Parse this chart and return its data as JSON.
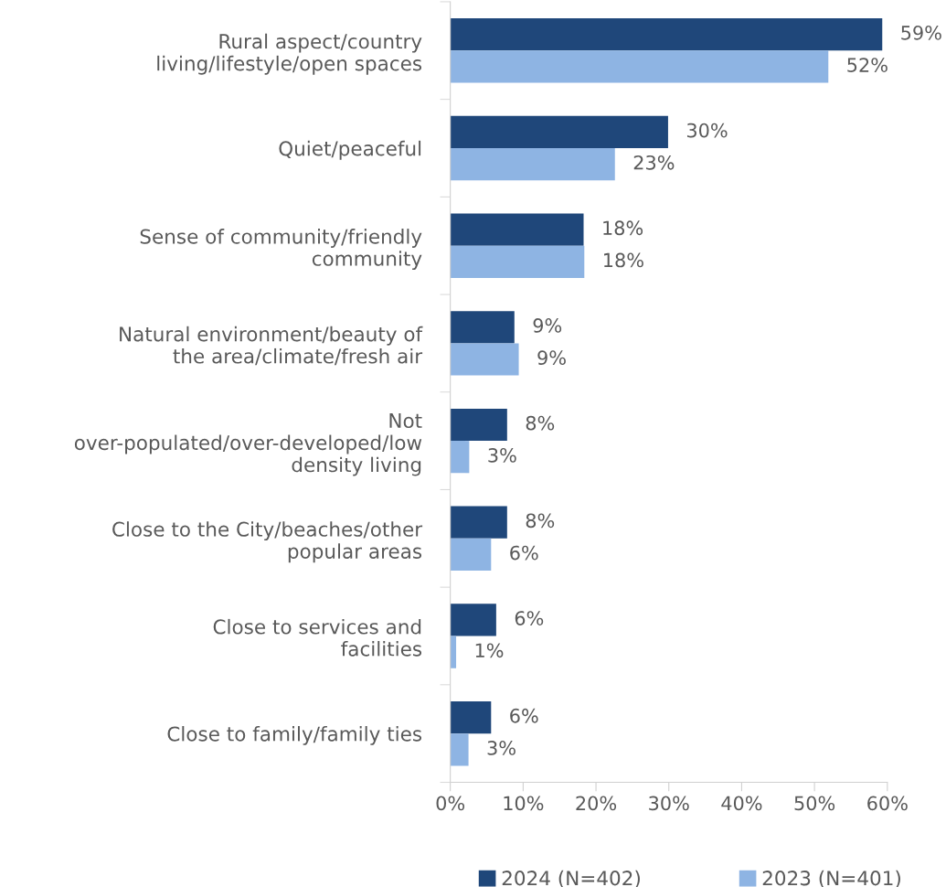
{
  "chart_data": {
    "type": "bar",
    "orientation": "horizontal",
    "categories": [
      "Rural aspect/country living/lifestyle/open spaces",
      "Quiet/peaceful",
      "Sense of community/friendly community",
      "Natural environment/beauty of the area/climate/fresh air",
      "Not over-populated/over-developed/low density living",
      "Close to the City/beaches/other popular areas",
      "Close to services and facilities",
      "Close to family/family ties"
    ],
    "series": [
      {
        "name": "2024 (N=402)",
        "color": "#1f477a",
        "values": [
          59.3,
          29.9,
          18.3,
          8.8,
          7.8,
          7.8,
          6.3,
          5.6
        ],
        "value_labels": [
          "59%",
          "30%",
          "18%",
          "9%",
          "8%",
          "8%",
          "6%",
          "6%"
        ]
      },
      {
        "name": "2023 (N=401)",
        "color": "#8eb4e3",
        "values": [
          51.9,
          22.6,
          18.4,
          9.4,
          2.6,
          5.6,
          0.8,
          2.5
        ],
        "value_labels": [
          "52%",
          "23%",
          "18%",
          "9%",
          "3%",
          "6%",
          "1%",
          "3%"
        ]
      }
    ],
    "xlim": [
      0,
      60
    ],
    "xticks": [
      {
        "value": 0,
        "label": "0%"
      },
      {
        "value": 10,
        "label": "10%"
      },
      {
        "value": 20,
        "label": "20%"
      },
      {
        "value": 30,
        "label": "30%"
      },
      {
        "value": 40,
        "label": "40%"
      },
      {
        "value": 50,
        "label": "50%"
      },
      {
        "value": 60,
        "label": "60%"
      }
    ],
    "grid": false,
    "legend": "bottom"
  }
}
